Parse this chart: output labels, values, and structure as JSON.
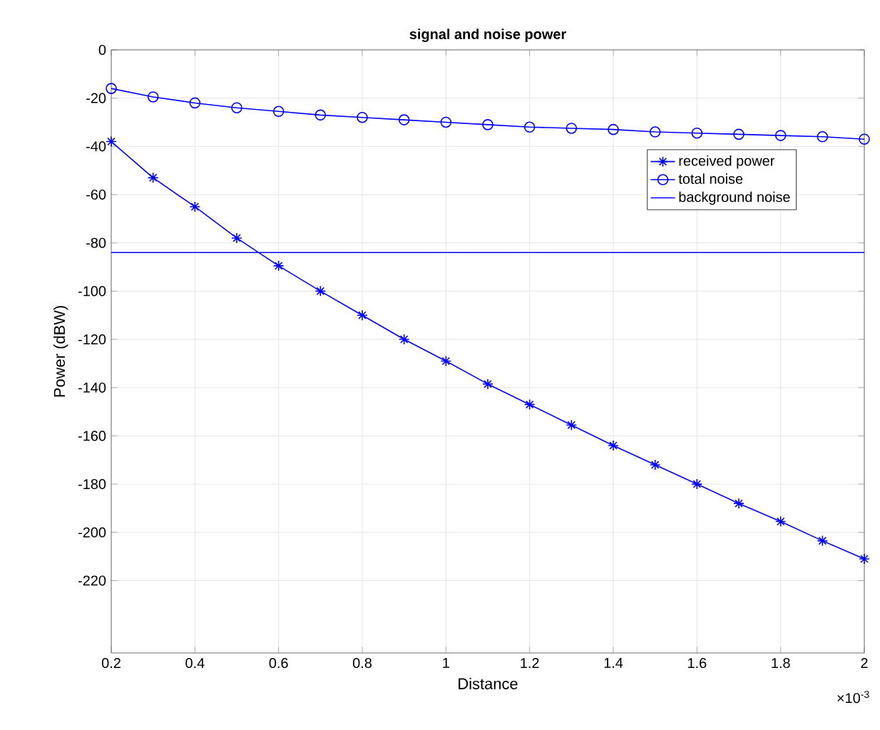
{
  "chart_data": {
    "type": "line",
    "title": "signal and noise power",
    "xlabel": "Distance",
    "ylabel": "Power (dBW)",
    "x": [
      0.2,
      0.3,
      0.4,
      0.5,
      0.6,
      0.7,
      0.8,
      0.9,
      1.0,
      1.1,
      1.2,
      1.3,
      1.4,
      1.5,
      1.6,
      1.7,
      1.8,
      1.9,
      2.0
    ],
    "series": [
      {
        "name": "received power",
        "color": "#0000ff",
        "marker": "cross",
        "values": [
          -38,
          -53,
          -65,
          -78,
          -89.5,
          -100,
          -110,
          -120,
          -129,
          -138.5,
          -147,
          -155.5,
          -164,
          -172,
          -180,
          -188,
          -195.5,
          -203.5,
          -211
        ]
      },
      {
        "name": "total noise",
        "color": "#0000ff",
        "marker": "circle",
        "values": [
          -16,
          -19.5,
          -22,
          -24,
          -25.5,
          -27,
          -28,
          -29,
          -30,
          -31,
          -32,
          -32.5,
          -33,
          -34,
          -34.5,
          -35,
          -35.5,
          -36,
          -37
        ]
      },
      {
        "name": "background noise",
        "color": "#0000ff",
        "marker": "none",
        "values": [
          -84,
          -84,
          -84,
          -84,
          -84,
          -84,
          -84,
          -84,
          -84,
          -84,
          -84,
          -84,
          -84,
          -84,
          -84,
          -84,
          -84,
          -84,
          -84
        ]
      }
    ],
    "xlim": [
      0.2,
      2
    ],
    "xticks": [
      0.2,
      0.4,
      0.6,
      0.8,
      1,
      1.2,
      1.4,
      1.6,
      1.8,
      2
    ],
    "ylim": [
      -250,
      0
    ],
    "yticks": [
      0,
      -20,
      -40,
      -60,
      -80,
      -100,
      -120,
      -140,
      -160,
      -180,
      -200,
      -220
    ],
    "annotations": [
      "×10$^{-3}$"
    ],
    "grid": true,
    "legend": "top right",
    "line_style": "solid"
  }
}
